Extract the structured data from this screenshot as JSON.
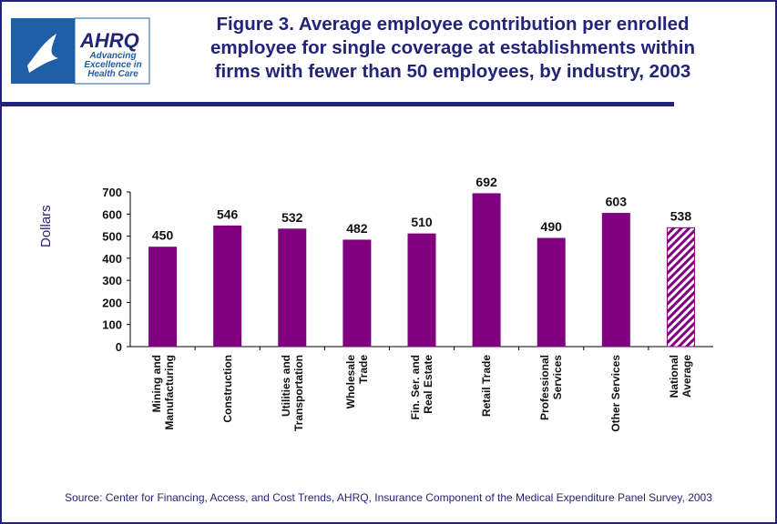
{
  "header": {
    "logo_title": "AHRQ",
    "logo_tagline": "Advancing\nExcellence in\nHealth Care"
  },
  "chart_data": {
    "type": "bar",
    "title": "Figure 3. Average employee contribution per enrolled\nemployee for single coverage at establishments within\nfirms with fewer than 50 employees, by industry, 2003",
    "y_label": "Dollars",
    "categories": [
      "Mining and\nManufacturing",
      "Construction",
      "Utilities and\nTransportation",
      "Wholesale\nTrade",
      "Fin. Ser. and\nReal Estate",
      "Retail Trade",
      "Professional\nServices",
      "Other Services",
      "National\nAverage"
    ],
    "values": [
      450,
      546,
      532,
      482,
      510,
      692,
      490,
      603,
      538
    ],
    "color": "#800080",
    "hatched": [
      false,
      false,
      false,
      false,
      false,
      false,
      false,
      false,
      true
    ],
    "ylim": [
      0,
      700
    ],
    "yticks": [
      0,
      100,
      200,
      300,
      400,
      500,
      600,
      700
    ],
    "source": "Source: Center for Financing, Access, and Cost Trends, AHRQ, Insurance Component of the Medical Expenditure Panel Survey, 2003"
  }
}
